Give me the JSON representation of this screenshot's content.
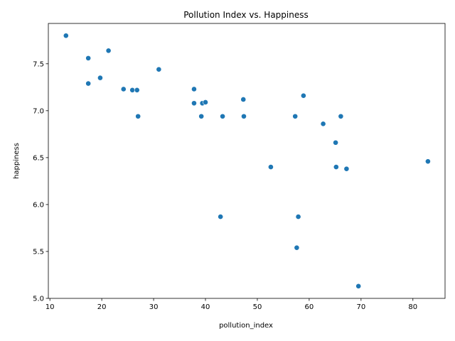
{
  "chart_data": {
    "type": "scatter",
    "title": "Pollution Index vs. Happiness",
    "xlabel": "pollution_index",
    "ylabel": "happiness",
    "xlim": [
      9.7,
      86.2
    ],
    "ylim": [
      5.0,
      7.93
    ],
    "xticks": [
      10,
      20,
      30,
      40,
      50,
      60,
      70,
      80
    ],
    "yticks": [
      5.0,
      5.5,
      6.0,
      6.5,
      7.0,
      7.5
    ],
    "xtick_labels": [
      "10",
      "20",
      "30",
      "40",
      "50",
      "60",
      "70",
      "80"
    ],
    "ytick_labels": [
      "5.0",
      "5.5",
      "6.0",
      "6.5",
      "7.0",
      "7.5"
    ],
    "grid": false,
    "marker_color": "#1f77b4",
    "points": [
      {
        "x": 13.1,
        "y": 7.8
      },
      {
        "x": 17.4,
        "y": 7.56
      },
      {
        "x": 17.4,
        "y": 7.29
      },
      {
        "x": 19.7,
        "y": 7.35
      },
      {
        "x": 21.3,
        "y": 7.64
      },
      {
        "x": 24.2,
        "y": 7.23
      },
      {
        "x": 25.9,
        "y": 7.22
      },
      {
        "x": 26.8,
        "y": 7.22
      },
      {
        "x": 27.0,
        "y": 6.94
      },
      {
        "x": 31.0,
        "y": 7.44
      },
      {
        "x": 37.8,
        "y": 7.23
      },
      {
        "x": 37.8,
        "y": 7.08
      },
      {
        "x": 39.2,
        "y": 6.94
      },
      {
        "x": 39.4,
        "y": 7.08
      },
      {
        "x": 40.0,
        "y": 7.09
      },
      {
        "x": 42.9,
        "y": 5.87
      },
      {
        "x": 43.3,
        "y": 6.94
      },
      {
        "x": 47.3,
        "y": 7.12
      },
      {
        "x": 47.4,
        "y": 6.94
      },
      {
        "x": 52.6,
        "y": 6.4
      },
      {
        "x": 57.3,
        "y": 6.94
      },
      {
        "x": 57.6,
        "y": 5.54
      },
      {
        "x": 57.9,
        "y": 5.87
      },
      {
        "x": 58.9,
        "y": 7.16
      },
      {
        "x": 62.7,
        "y": 6.86
      },
      {
        "x": 65.1,
        "y": 6.66
      },
      {
        "x": 65.2,
        "y": 6.4
      },
      {
        "x": 66.1,
        "y": 6.94
      },
      {
        "x": 67.2,
        "y": 6.38
      },
      {
        "x": 69.5,
        "y": 5.13
      },
      {
        "x": 82.9,
        "y": 6.46
      }
    ]
  }
}
